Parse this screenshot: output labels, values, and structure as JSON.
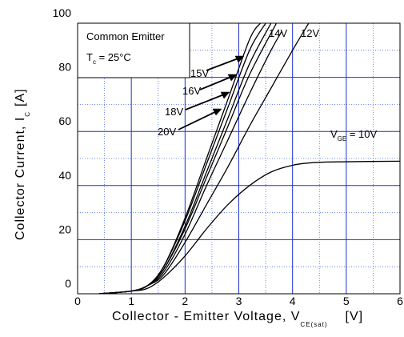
{
  "chart_data": {
    "type": "line",
    "xlabel": "Collector - Emitter Voltage, V",
    "xlabel_sub": "CE(sat)",
    "xlabel_unit": "[V]",
    "ylabel": "Collector Current, I",
    "ylabel_sub": "C",
    "ylabel_unit": "[A]",
    "xlim": [
      0,
      6
    ],
    "ylim": [
      0,
      100
    ],
    "xticks": [
      "0",
      "1",
      "2",
      "3",
      "4",
      "5",
      "6"
    ],
    "yticks": [
      "0",
      "20",
      "40",
      "60",
      "80",
      "100"
    ],
    "grid": true,
    "legend_box": {
      "line1": "Common Emitter",
      "line2_pre": "T",
      "line2_sub": "c",
      "line2_post": " = 25°C"
    },
    "series": [
      {
        "name": "20V",
        "x": [
          0.4,
          1.0,
          1.3,
          1.6,
          2.0,
          2.4,
          2.8,
          3.2,
          3.4
        ],
        "y": [
          0,
          1,
          3,
          10,
          28,
          50,
          72,
          94,
          100
        ]
      },
      {
        "name": "18V",
        "x": [
          0.4,
          1.0,
          1.3,
          1.6,
          2.0,
          2.4,
          2.8,
          3.2,
          3.5
        ],
        "y": [
          0,
          1,
          3,
          10,
          27,
          48,
          69,
          90,
          100
        ]
      },
      {
        "name": "16V",
        "x": [
          0.4,
          1.0,
          1.3,
          1.6,
          2.0,
          2.4,
          2.8,
          3.2,
          3.6
        ],
        "y": [
          0,
          1,
          3,
          9,
          25,
          45,
          65,
          85,
          100
        ]
      },
      {
        "name": "15V",
        "x": [
          0.4,
          1.0,
          1.3,
          1.6,
          2.0,
          2.4,
          2.8,
          3.2,
          3.7
        ],
        "y": [
          0,
          1,
          3,
          9,
          24,
          43,
          62,
          81,
          100
        ]
      },
      {
        "name": "14V",
        "x": [
          0.4,
          1.0,
          1.3,
          1.6,
          2.0,
          2.4,
          2.8,
          3.2,
          3.6,
          3.8
        ],
        "y": [
          0,
          1,
          3,
          8,
          22,
          40,
          57,
          74,
          90,
          97
        ]
      },
      {
        "name": "12V",
        "x": [
          0.4,
          1.0,
          1.3,
          1.6,
          2.0,
          2.4,
          2.8,
          3.2,
          3.6,
          4.0,
          4.3
        ],
        "y": [
          0,
          1,
          3,
          7,
          19,
          33,
          47,
          62,
          76,
          90,
          100
        ]
      },
      {
        "name": "10V",
        "x": [
          0.4,
          1.0,
          1.3,
          1.6,
          2.0,
          2.4,
          2.8,
          3.2,
          3.6,
          4.0,
          4.4,
          5.0,
          6.0
        ],
        "y": [
          0,
          1,
          2,
          6,
          14,
          24,
          33,
          40,
          45,
          47.5,
          48.5,
          48.8,
          49
        ]
      }
    ],
    "annotations": [
      {
        "text": "15V"
      },
      {
        "text": "16V"
      },
      {
        "text": "18V"
      },
      {
        "text": "20V"
      },
      {
        "text": "14V"
      },
      {
        "text": "12V"
      },
      {
        "text_pre": "V",
        "text_sub": "GE",
        "text_post": " = 10V"
      }
    ]
  }
}
